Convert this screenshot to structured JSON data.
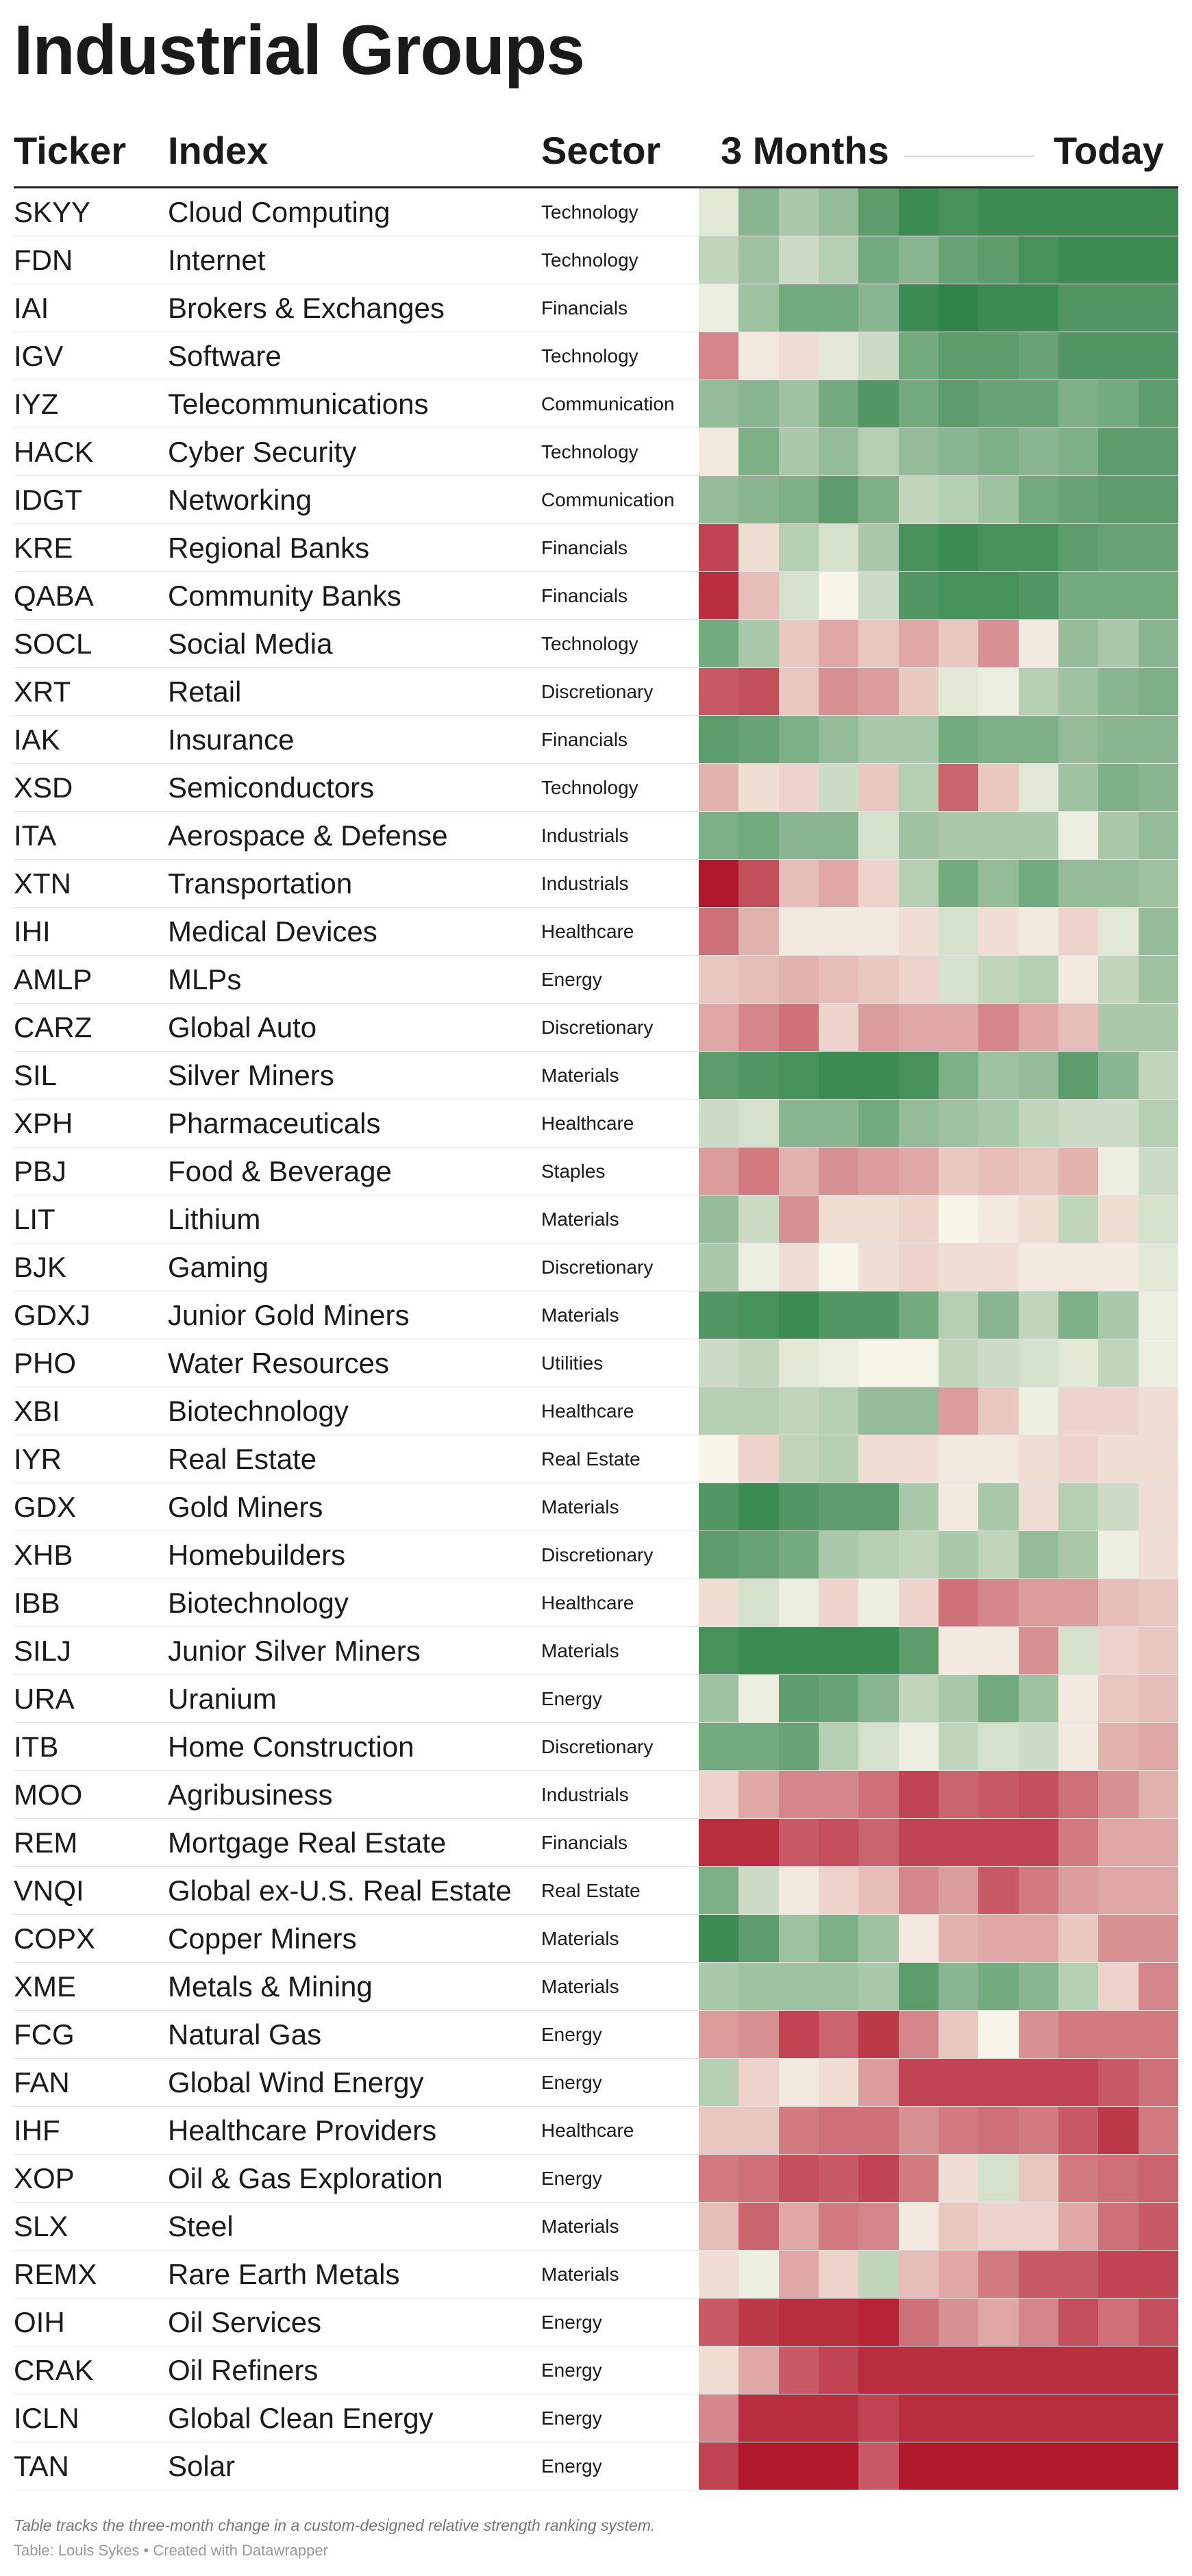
{
  "title": "Industrial Groups",
  "headers": {
    "ticker": "Ticker",
    "index": "Index",
    "sector": "Sector",
    "start": "3 Months",
    "end": "Today"
  },
  "notes": "Table tracks the three-month change in a custom-designed relative strength ranking system.",
  "source": "Table: Louis Sykes • Created with Datawrapper",
  "chart_data": {
    "type": "heatmap",
    "title": "Industrial Groups",
    "x_start_label": "3 Months",
    "x_end_label": "Today",
    "color_scale": {
      "low": "#b2182b",
      "mid": "#f7f4e8",
      "high": "#1b7837"
    },
    "value_range": [
      -1,
      1
    ],
    "rows": [
      {
        "ticker": "SKYY",
        "index": "Cloud Computing",
        "sector": "Technology",
        "values": [
          0.1,
          0.5,
          0.35,
          0.45,
          0.7,
          0.85,
          0.8,
          0.85,
          0.85,
          0.85,
          0.85,
          0.85
        ]
      },
      {
        "ticker": "FDN",
        "index": "Internet",
        "sector": "Technology",
        "values": [
          0.25,
          0.4,
          0.2,
          0.3,
          0.6,
          0.5,
          0.65,
          0.7,
          0.8,
          0.85,
          0.85,
          0.85
        ]
      },
      {
        "ticker": "IAI",
        "index": "Brokers & Exchanges",
        "sector": "Financials",
        "values": [
          0.05,
          0.4,
          0.6,
          0.6,
          0.5,
          0.85,
          0.9,
          0.85,
          0.85,
          0.75,
          0.75,
          0.75
        ]
      },
      {
        "ticker": "IGV",
        "index": "Software",
        "sector": "Technology",
        "values": [
          -0.5,
          -0.05,
          -0.1,
          0.1,
          0.2,
          0.6,
          0.7,
          0.7,
          0.65,
          0.75,
          0.75,
          0.75
        ]
      },
      {
        "ticker": "IYZ",
        "index": "Telecommunications",
        "sector": "Communication",
        "values": [
          0.45,
          0.5,
          0.4,
          0.6,
          0.75,
          0.6,
          0.7,
          0.65,
          0.65,
          0.55,
          0.6,
          0.7
        ]
      },
      {
        "ticker": "HACK",
        "index": "Cyber Security",
        "sector": "Technology",
        "values": [
          -0.05,
          0.55,
          0.35,
          0.45,
          0.3,
          0.45,
          0.5,
          0.55,
          0.5,
          0.55,
          0.7,
          0.7
        ]
      },
      {
        "ticker": "IDGT",
        "index": "Networking",
        "sector": "Communication",
        "values": [
          0.45,
          0.5,
          0.55,
          0.7,
          0.55,
          0.25,
          0.3,
          0.4,
          0.6,
          0.65,
          0.7,
          0.7
        ]
      },
      {
        "ticker": "KRE",
        "index": "Regional Banks",
        "sector": "Financials",
        "values": [
          -0.8,
          -0.1,
          0.3,
          0.15,
          0.35,
          0.8,
          0.85,
          0.8,
          0.8,
          0.7,
          0.65,
          0.65
        ]
      },
      {
        "ticker": "QABA",
        "index": "Community Banks",
        "sector": "Financials",
        "values": [
          -0.9,
          -0.25,
          0.15,
          0.0,
          0.2,
          0.75,
          0.8,
          0.8,
          0.75,
          0.6,
          0.6,
          0.6
        ]
      },
      {
        "ticker": "SOCL",
        "index": "Social Media",
        "sector": "Technology",
        "values": [
          0.6,
          0.35,
          -0.2,
          -0.35,
          -0.2,
          -0.35,
          -0.2,
          -0.45,
          -0.05,
          0.45,
          0.35,
          0.5
        ]
      },
      {
        "ticker": "XRT",
        "index": "Retail",
        "sector": "Discretionary",
        "values": [
          -0.7,
          -0.75,
          -0.2,
          -0.45,
          -0.4,
          -0.2,
          0.1,
          0.05,
          0.3,
          0.4,
          0.5,
          0.55
        ]
      },
      {
        "ticker": "IAK",
        "index": "Insurance",
        "sector": "Financials",
        "values": [
          0.7,
          0.65,
          0.55,
          0.45,
          0.35,
          0.35,
          0.6,
          0.55,
          0.55,
          0.45,
          0.5,
          0.5
        ]
      },
      {
        "ticker": "XSD",
        "index": "Semiconductors",
        "sector": "Technology",
        "values": [
          -0.3,
          -0.1,
          -0.15,
          0.2,
          -0.2,
          0.3,
          -0.65,
          -0.2,
          0.1,
          0.4,
          0.55,
          0.5
        ]
      },
      {
        "ticker": "ITA",
        "index": "Aerospace & Defense",
        "sector": "Industrials",
        "values": [
          0.55,
          0.6,
          0.5,
          0.5,
          0.15,
          0.4,
          0.35,
          0.35,
          0.35,
          0.05,
          0.35,
          0.45
        ]
      },
      {
        "ticker": "XTN",
        "index": "Transportation",
        "sector": "Industrials",
        "values": [
          -1.0,
          -0.75,
          -0.25,
          -0.35,
          -0.15,
          0.3,
          0.6,
          0.45,
          0.6,
          0.45,
          0.45,
          0.4
        ]
      },
      {
        "ticker": "IHI",
        "index": "Medical Devices",
        "sector": "Healthcare",
        "values": [
          -0.6,
          -0.3,
          -0.05,
          -0.05,
          -0.05,
          -0.1,
          0.15,
          -0.1,
          -0.05,
          -0.15,
          0.1,
          0.45
        ]
      },
      {
        "ticker": "AMLP",
        "index": "MLPs",
        "sector": "Energy",
        "values": [
          -0.2,
          -0.25,
          -0.3,
          -0.25,
          -0.2,
          -0.15,
          0.15,
          0.25,
          0.3,
          -0.05,
          0.25,
          0.4
        ]
      },
      {
        "ticker": "CARZ",
        "index": "Global Auto",
        "sector": "Discretionary",
        "values": [
          -0.35,
          -0.5,
          -0.6,
          -0.15,
          -0.4,
          -0.35,
          -0.35,
          -0.5,
          -0.35,
          -0.25,
          0.35,
          0.35
        ]
      },
      {
        "ticker": "SIL",
        "index": "Silver Miners",
        "sector": "Materials",
        "values": [
          0.7,
          0.75,
          0.8,
          0.85,
          0.85,
          0.8,
          0.55,
          0.4,
          0.45,
          0.7,
          0.5,
          0.25
        ]
      },
      {
        "ticker": "XPH",
        "index": "Pharmaceuticals",
        "sector": "Healthcare",
        "values": [
          0.2,
          0.15,
          0.5,
          0.5,
          0.6,
          0.45,
          0.4,
          0.35,
          0.25,
          0.2,
          0.2,
          0.3
        ]
      },
      {
        "ticker": "PBJ",
        "index": "Food & Beverage",
        "sector": "Staples",
        "values": [
          -0.4,
          -0.55,
          -0.3,
          -0.45,
          -0.4,
          -0.35,
          -0.2,
          -0.25,
          -0.2,
          -0.3,
          0.05,
          0.2
        ]
      },
      {
        "ticker": "LIT",
        "index": "Lithium",
        "sector": "Materials",
        "values": [
          0.45,
          0.2,
          -0.45,
          -0.1,
          -0.1,
          -0.15,
          0.0,
          -0.05,
          -0.1,
          0.25,
          -0.1,
          0.15
        ]
      },
      {
        "ticker": "BJK",
        "index": "Gaming",
        "sector": "Discretionary",
        "values": [
          0.35,
          0.05,
          -0.1,
          0.0,
          -0.1,
          -0.15,
          -0.1,
          -0.1,
          -0.05,
          -0.05,
          -0.05,
          0.1
        ]
      },
      {
        "ticker": "GDXJ",
        "index": "Junior Gold Miners",
        "sector": "Materials",
        "values": [
          0.75,
          0.8,
          0.85,
          0.75,
          0.75,
          0.6,
          0.3,
          0.5,
          0.25,
          0.55,
          0.35,
          0.05
        ]
      },
      {
        "ticker": "PHO",
        "index": "Water Resources",
        "sector": "Utilities",
        "values": [
          0.2,
          0.25,
          0.1,
          0.05,
          0.0,
          0.0,
          0.25,
          0.2,
          0.15,
          0.1,
          0.25,
          0.05
        ]
      },
      {
        "ticker": "XBI",
        "index": "Biotechnology",
        "sector": "Healthcare",
        "values": [
          0.3,
          0.3,
          0.25,
          0.3,
          0.45,
          0.45,
          -0.4,
          -0.2,
          0.05,
          -0.15,
          -0.15,
          -0.1
        ]
      },
      {
        "ticker": "IYR",
        "index": "Real Estate",
        "sector": "Real Estate",
        "values": [
          0.0,
          -0.15,
          0.25,
          0.3,
          -0.1,
          -0.1,
          -0.05,
          -0.05,
          -0.1,
          -0.15,
          -0.1,
          -0.1
        ]
      },
      {
        "ticker": "GDX",
        "index": "Gold Miners",
        "sector": "Materials",
        "values": [
          0.75,
          0.85,
          0.75,
          0.7,
          0.7,
          0.35,
          -0.05,
          0.35,
          -0.1,
          0.3,
          0.2,
          -0.1
        ]
      },
      {
        "ticker": "XHB",
        "index": "Homebuilders",
        "sector": "Discretionary",
        "values": [
          0.7,
          0.65,
          0.6,
          0.35,
          0.3,
          0.25,
          0.35,
          0.25,
          0.45,
          0.35,
          0.05,
          -0.1
        ]
      },
      {
        "ticker": "IBB",
        "index": "Biotechnology",
        "sector": "Healthcare",
        "values": [
          -0.1,
          0.15,
          0.05,
          -0.15,
          0.05,
          -0.15,
          -0.6,
          -0.5,
          -0.4,
          -0.4,
          -0.25,
          -0.2
        ]
      },
      {
        "ticker": "SILJ",
        "index": "Junior Silver Miners",
        "sector": "Materials",
        "values": [
          0.8,
          0.85,
          0.85,
          0.85,
          0.85,
          0.7,
          -0.05,
          -0.05,
          -0.45,
          0.15,
          -0.15,
          -0.2
        ]
      },
      {
        "ticker": "URA",
        "index": "Uranium",
        "sector": "Energy",
        "values": [
          0.4,
          0.05,
          0.7,
          0.65,
          0.5,
          0.25,
          0.35,
          0.6,
          0.4,
          -0.05,
          -0.2,
          -0.25
        ]
      },
      {
        "ticker": "ITB",
        "index": "Home Construction",
        "sector": "Discretionary",
        "values": [
          0.6,
          0.6,
          0.65,
          0.3,
          0.15,
          0.05,
          0.25,
          0.15,
          0.2,
          -0.05,
          -0.3,
          -0.35
        ]
      },
      {
        "ticker": "MOO",
        "index": "Agribusiness",
        "sector": "Industrials",
        "values": [
          -0.15,
          -0.35,
          -0.5,
          -0.5,
          -0.6,
          -0.8,
          -0.65,
          -0.7,
          -0.75,
          -0.6,
          -0.45,
          -0.3
        ]
      },
      {
        "ticker": "REM",
        "index": "Mortgage Real Estate",
        "sector": "Financials",
        "values": [
          -0.9,
          -0.9,
          -0.7,
          -0.75,
          -0.65,
          -0.8,
          -0.8,
          -0.8,
          -0.8,
          -0.55,
          -0.35,
          -0.35
        ]
      },
      {
        "ticker": "VNQI",
        "index": "Global ex-U.S. Real Estate",
        "sector": "Real Estate",
        "values": [
          0.55,
          0.2,
          -0.05,
          -0.15,
          -0.25,
          -0.5,
          -0.4,
          -0.7,
          -0.55,
          -0.4,
          -0.35,
          -0.35
        ]
      },
      {
        "ticker": "COPX",
        "index": "Copper Miners",
        "sector": "Materials",
        "values": [
          0.85,
          0.7,
          0.4,
          0.55,
          0.4,
          -0.05,
          -0.3,
          -0.35,
          -0.35,
          -0.2,
          -0.45,
          -0.45
        ]
      },
      {
        "ticker": "XME",
        "index": "Metals & Mining",
        "sector": "Materials",
        "values": [
          0.35,
          0.4,
          0.4,
          0.4,
          0.35,
          0.7,
          0.5,
          0.6,
          0.5,
          0.3,
          -0.15,
          -0.5
        ]
      },
      {
        "ticker": "FCG",
        "index": "Natural Gas",
        "sector": "Energy",
        "values": [
          -0.4,
          -0.45,
          -0.8,
          -0.65,
          -0.85,
          -0.5,
          -0.2,
          0.0,
          -0.45,
          -0.55,
          -0.55,
          -0.55
        ]
      },
      {
        "ticker": "FAN",
        "index": "Global Wind Energy",
        "sector": "Energy",
        "values": [
          0.3,
          -0.15,
          -0.05,
          -0.1,
          -0.4,
          -0.8,
          -0.8,
          -0.8,
          -0.8,
          -0.8,
          -0.7,
          -0.6
        ]
      },
      {
        "ticker": "IHF",
        "index": "Healthcare Providers",
        "sector": "Healthcare",
        "values": [
          -0.2,
          -0.2,
          -0.55,
          -0.6,
          -0.6,
          -0.45,
          -0.55,
          -0.6,
          -0.55,
          -0.7,
          -0.85,
          -0.55
        ]
      },
      {
        "ticker": "XOP",
        "index": "Oil & Gas Exploration",
        "sector": "Energy",
        "values": [
          -0.55,
          -0.6,
          -0.75,
          -0.7,
          -0.8,
          -0.55,
          -0.1,
          0.15,
          -0.2,
          -0.55,
          -0.6,
          -0.65
        ]
      },
      {
        "ticker": "SLX",
        "index": "Steel",
        "sector": "Materials",
        "values": [
          -0.25,
          -0.65,
          -0.35,
          -0.55,
          -0.5,
          -0.05,
          -0.2,
          -0.15,
          -0.15,
          -0.35,
          -0.6,
          -0.7
        ]
      },
      {
        "ticker": "REMX",
        "index": "Rare Earth Metals",
        "sector": "Materials",
        "values": [
          -0.1,
          0.05,
          -0.35,
          -0.15,
          0.25,
          -0.25,
          -0.35,
          -0.55,
          -0.7,
          -0.7,
          -0.8,
          -0.8
        ]
      },
      {
        "ticker": "OIH",
        "index": "Oil Services",
        "sector": "Energy",
        "values": [
          -0.7,
          -0.85,
          -0.9,
          -0.9,
          -0.95,
          -0.6,
          -0.45,
          -0.35,
          -0.5,
          -0.75,
          -0.6,
          -0.75
        ]
      },
      {
        "ticker": "CRAK",
        "index": "Oil Refiners",
        "sector": "Energy",
        "values": [
          -0.1,
          -0.35,
          -0.7,
          -0.8,
          -0.9,
          -0.9,
          -0.9,
          -0.9,
          -0.9,
          -0.9,
          -0.9,
          -0.9
        ]
      },
      {
        "ticker": "ICLN",
        "index": "Global Clean Energy",
        "sector": "Energy",
        "values": [
          -0.5,
          -0.9,
          -0.9,
          -0.9,
          -0.8,
          -0.9,
          -0.9,
          -0.9,
          -0.9,
          -0.9,
          -0.9,
          -0.9
        ]
      },
      {
        "ticker": "TAN",
        "index": "Solar",
        "sector": "Energy",
        "values": [
          -0.8,
          -1.0,
          -1.0,
          -1.0,
          -0.7,
          -1.0,
          -1.0,
          -1.0,
          -1.0,
          -1.0,
          -1.0,
          -1.0
        ]
      }
    ]
  }
}
